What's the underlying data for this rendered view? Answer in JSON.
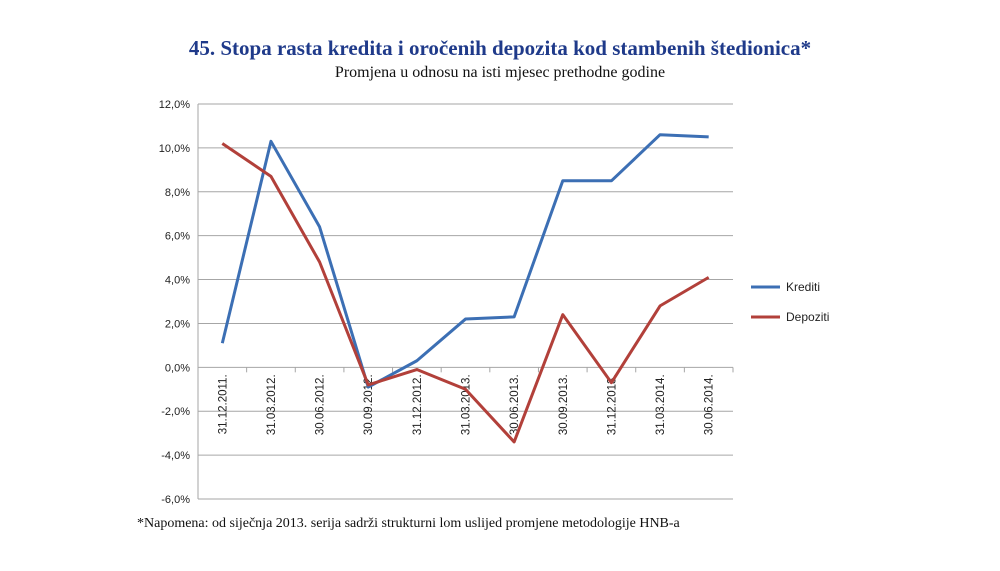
{
  "chart_data": {
    "type": "line",
    "title": "45. Stopa rasta kredita i oročenih depozita kod stambenih štedionica*",
    "subtitle": "Promjena u odnosu na isti mjesec prethodne godine",
    "categories": [
      "31.12.2011.",
      "31.03.2012.",
      "30.06.2012.",
      "30.09.2012.",
      "31.12.2012.",
      "31.03.2013.",
      "30.06.2013.",
      "30.09.2013.",
      "31.12.2013.",
      "31.03.2014.",
      "30.06.2014."
    ],
    "y_ticks": [
      "12,0%",
      "10,0%",
      "8,0%",
      "6,0%",
      "4,0%",
      "2,0%",
      "0,0%",
      "-2,0%",
      "-4,0%",
      "-6,0%"
    ],
    "ylim": [
      -6,
      12
    ],
    "grid": true,
    "legend_position": "right",
    "series": [
      {
        "name": "Krediti",
        "color": "#3c6fb4",
        "values": [
          1.1,
          10.3,
          6.4,
          -0.9,
          0.3,
          2.2,
          2.3,
          8.5,
          8.5,
          10.6,
          10.5
        ]
      },
      {
        "name": "Depoziti",
        "color": "#b2403a",
        "values": [
          10.2,
          8.7,
          4.8,
          -0.8,
          -0.1,
          -1.0,
          -3.4,
          2.4,
          -0.7,
          2.8,
          4.1
        ]
      }
    ]
  },
  "note": "*Napomena: od siječnja 2013. serija sadrži strukturni lom uslijed promjene metodologije HNB-a"
}
